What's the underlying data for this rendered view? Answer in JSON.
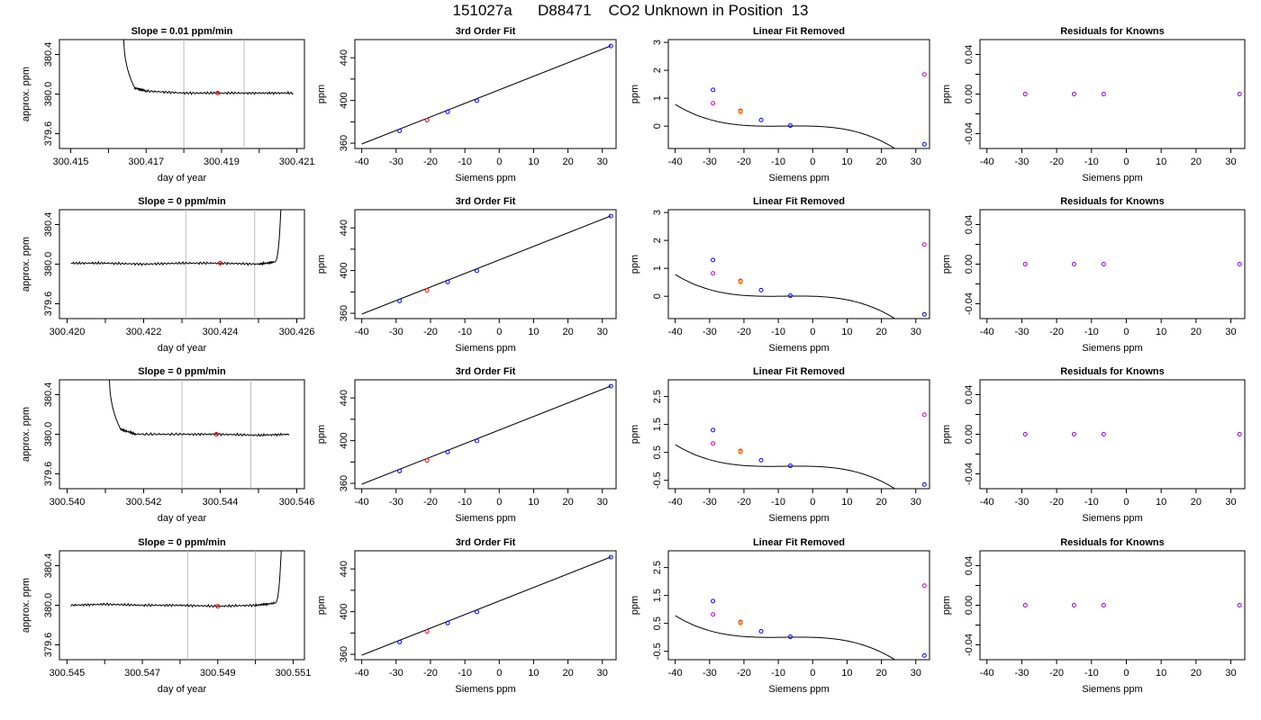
{
  "figure": {
    "title": "151027a      D88471    CO2 Unknown in Position  13"
  },
  "chart_data": [
    {
      "type": "line",
      "title": "Slope =  0.01  ppm/min",
      "xlabel": "day of year",
      "ylabel": "approx. ppm",
      "xlim": [
        300.4147,
        300.4212
      ],
      "ylim": [
        379.45,
        380.55
      ],
      "xticks": [
        "300.415",
        "300.417",
        "300.419",
        "300.421"
      ],
      "xminor": [
        300.416,
        300.418,
        300.42
      ],
      "yticks": [
        "379.6",
        "380.0",
        "380.4"
      ],
      "vlines": [
        300.418,
        300.4196
      ],
      "series": [
        {
          "x": [
            300.4164,
            300.4167,
            300.417,
            300.418,
            300.419,
            300.42,
            300.4209
          ],
          "y": [
            380.7,
            380.06,
            380.03,
            380.01,
            380.01,
            380.01,
            380.01
          ],
          "noise_from": 300.4167
        }
      ],
      "marker": {
        "x": 300.4189,
        "y": 380.01,
        "color": "#ff0000"
      }
    },
    {
      "type": "scatter",
      "title": "3rd Order Fit",
      "xlabel": "Siemens ppm",
      "ylabel": "ppm",
      "xlim": [
        -42,
        34
      ],
      "ylim": [
        355,
        457
      ],
      "xticks": [
        "-40",
        "-30",
        "-20",
        "-10",
        "0",
        "10",
        "20",
        "30"
      ],
      "yticks": [
        "360",
        "400",
        "440"
      ],
      "yminor": [
        380,
        420
      ],
      "curve": {
        "x": [
          -40,
          32.5
        ],
        "y": [
          359.2,
          451.2
        ]
      },
      "points": [
        {
          "x": -29,
          "y": 371.5,
          "color": "#0000ff"
        },
        {
          "x": -21,
          "y": 381.5,
          "color": "#ff0000"
        },
        {
          "x": -15,
          "y": 389.3,
          "color": "#0000ff"
        },
        {
          "x": -6.5,
          "y": 399.8,
          "color": "#0000ff"
        },
        {
          "x": 32.5,
          "y": 451,
          "color": "#0000ff"
        }
      ]
    },
    {
      "type": "scatter",
      "title": "Linear Fit Removed",
      "xlabel": "Siemens ppm",
      "ylabel": "ppm",
      "xlim": [
        -42,
        34
      ],
      "ylim": [
        -0.8,
        3.1
      ],
      "xticks": [
        "-40",
        "-30",
        "-20",
        "-10",
        "0",
        "10",
        "20",
        "30"
      ],
      "yticks": [
        "0",
        "1",
        "2",
        "3"
      ],
      "curve": {
        "coef": [
          0.0,
          -0.0039,
          -0.00063,
          -2.55e-05
        ]
      },
      "points": [
        {
          "x": -29,
          "y": 1.3,
          "color": "#0000ff"
        },
        {
          "x": -21,
          "y": 0.55,
          "color": "#ff0000"
        },
        {
          "x": -21,
          "y": 0.5,
          "color": "#ff9900"
        },
        {
          "x": -29,
          "y": 0.82,
          "color": "#cc00cc"
        },
        {
          "x": -15,
          "y": 0.22,
          "color": "#0000ff"
        },
        {
          "x": -6.5,
          "y": 0.02,
          "color": "#0000ff"
        },
        {
          "x": 32.5,
          "y": -0.65,
          "color": "#0000ff"
        },
        {
          "x": 32.5,
          "y": 1.85,
          "color": "#cc00cc"
        }
      ]
    },
    {
      "type": "scatter",
      "title": "Residuals for Knowns",
      "xlabel": "Siemens ppm",
      "ylabel": "ppm",
      "xlim": [
        -42,
        34
      ],
      "ylim": [
        -0.055,
        0.055
      ],
      "xticks": [
        "-40",
        "-30",
        "-20",
        "-10",
        "0",
        "10",
        "20",
        "30"
      ],
      "yticks": [
        "-0.04",
        "0.00",
        "0.04"
      ],
      "yminor": [
        -0.02,
        0.02
      ],
      "points": [
        {
          "x": -29,
          "y": 0,
          "color": "#9900cc"
        },
        {
          "x": -15,
          "y": 0,
          "color": "#9900cc"
        },
        {
          "x": -6.5,
          "y": 0,
          "color": "#9900cc"
        },
        {
          "x": 32.5,
          "y": 0,
          "color": "#9900cc"
        }
      ]
    },
    {
      "type": "line",
      "title": "Slope =  0  ppm/min",
      "xlabel": "day of year",
      "ylabel": "approx. ppm",
      "xlim": [
        300.4198,
        300.4262
      ],
      "ylim": [
        379.45,
        380.55
      ],
      "xticks": [
        "300.420",
        "300.422",
        "300.424",
        "300.426"
      ],
      "xminor": [
        300.421,
        300.423,
        300.425
      ],
      "yticks": [
        "379.6",
        "380.0",
        "380.4"
      ],
      "vlines": [
        300.4231,
        300.4249
      ],
      "series": [
        {
          "x": [
            300.4201,
            300.421,
            300.422,
            300.423,
            300.424,
            300.425,
            300.4254,
            300.4256
          ],
          "y": [
            380.01,
            380.01,
            380.0,
            380.01,
            380.01,
            380.0,
            380.02,
            380.7
          ],
          "noise_until": 300.4254
        }
      ],
      "marker": {
        "x": 300.424,
        "y": 380.01,
        "color": "#ff0000"
      }
    },
    {
      "type": "scatter",
      "title": "3rd Order Fit",
      "xlabel": "Siemens ppm",
      "ylabel": "ppm",
      "xlim": [
        -42,
        34
      ],
      "ylim": [
        355,
        457
      ],
      "xticks": [
        "-40",
        "-30",
        "-20",
        "-10",
        "0",
        "10",
        "20",
        "30"
      ],
      "yticks": [
        "360",
        "400",
        "440"
      ],
      "yminor": [
        380,
        420
      ],
      "curve": {
        "x": [
          -40,
          32.5
        ],
        "y": [
          359.2,
          451.2
        ]
      },
      "points": [
        {
          "x": -29,
          "y": 371.5,
          "color": "#0000ff"
        },
        {
          "x": -21,
          "y": 381.5,
          "color": "#ff0000"
        },
        {
          "x": -15,
          "y": 389.3,
          "color": "#0000ff"
        },
        {
          "x": -6.5,
          "y": 399.8,
          "color": "#0000ff"
        },
        {
          "x": 32.5,
          "y": 451,
          "color": "#0000ff"
        }
      ]
    },
    {
      "type": "scatter",
      "title": "Linear Fit Removed",
      "xlabel": "Siemens ppm",
      "ylabel": "ppm",
      "xlim": [
        -42,
        34
      ],
      "ylim": [
        -0.8,
        3.1
      ],
      "xticks": [
        "-40",
        "-30",
        "-20",
        "-10",
        "0",
        "10",
        "20",
        "30"
      ],
      "yticks": [
        "0",
        "1",
        "2",
        "3"
      ],
      "curve": {
        "coef": [
          0.0,
          -0.0039,
          -0.00063,
          -2.55e-05
        ]
      },
      "points": [
        {
          "x": -29,
          "y": 1.3,
          "color": "#0000ff"
        },
        {
          "x": -21,
          "y": 0.55,
          "color": "#ff0000"
        },
        {
          "x": -21,
          "y": 0.5,
          "color": "#ff9900"
        },
        {
          "x": -29,
          "y": 0.82,
          "color": "#cc00cc"
        },
        {
          "x": -15,
          "y": 0.22,
          "color": "#0000ff"
        },
        {
          "x": -6.5,
          "y": 0.02,
          "color": "#0000ff"
        },
        {
          "x": 32.5,
          "y": -0.65,
          "color": "#0000ff"
        },
        {
          "x": 32.5,
          "y": 1.85,
          "color": "#cc00cc"
        }
      ]
    },
    {
      "type": "scatter",
      "title": "Residuals for Knowns",
      "xlabel": "Siemens ppm",
      "ylabel": "ppm",
      "xlim": [
        -42,
        34
      ],
      "ylim": [
        -0.055,
        0.055
      ],
      "xticks": [
        "-40",
        "-30",
        "-20",
        "-10",
        "0",
        "10",
        "20",
        "30"
      ],
      "yticks": [
        "-0.04",
        "0.00",
        "0.04"
      ],
      "yminor": [
        -0.02,
        0.02
      ],
      "points": [
        {
          "x": -29,
          "y": 0,
          "color": "#9900cc"
        },
        {
          "x": -15,
          "y": 0,
          "color": "#9900cc"
        },
        {
          "x": -6.5,
          "y": 0,
          "color": "#9900cc"
        },
        {
          "x": 32.5,
          "y": 0,
          "color": "#9900cc"
        }
      ]
    },
    {
      "type": "line",
      "title": "Slope =  0  ppm/min",
      "xlabel": "day of year",
      "ylabel": "approx. ppm",
      "xlim": [
        300.5398,
        300.5462
      ],
      "ylim": [
        379.45,
        380.55
      ],
      "xticks": [
        "300.540",
        "300.542",
        "300.544",
        "300.546"
      ],
      "xminor": [
        300.541,
        300.543,
        300.545
      ],
      "yticks": [
        "379.6",
        "380.0",
        "380.4"
      ],
      "vlines": [
        300.543,
        300.5448
      ],
      "series": [
        {
          "x": [
            300.5411,
            300.5414,
            300.5418,
            300.543,
            300.544,
            300.545,
            300.5458
          ],
          "y": [
            380.7,
            380.05,
            380.0,
            380.0,
            380.0,
            379.99,
            380.0
          ],
          "noise_from": 300.5414
        }
      ],
      "marker": {
        "x": 300.5439,
        "y": 380.0,
        "color": "#ff0000"
      }
    },
    {
      "type": "scatter",
      "title": "3rd Order Fit",
      "xlabel": "Siemens ppm",
      "ylabel": "ppm",
      "xlim": [
        -42,
        34
      ],
      "ylim": [
        355,
        457
      ],
      "xticks": [
        "-40",
        "-30",
        "-20",
        "-10",
        "0",
        "10",
        "20",
        "30"
      ],
      "yticks": [
        "360",
        "400",
        "440"
      ],
      "yminor": [
        380,
        420
      ],
      "curve": {
        "x": [
          -40,
          32.5
        ],
        "y": [
          359.2,
          451.2
        ]
      },
      "points": [
        {
          "x": -29,
          "y": 371.5,
          "color": "#0000ff"
        },
        {
          "x": -21,
          "y": 381.5,
          "color": "#ff0000"
        },
        {
          "x": -15,
          "y": 389.3,
          "color": "#0000ff"
        },
        {
          "x": -6.5,
          "y": 399.8,
          "color": "#0000ff"
        },
        {
          "x": 32.5,
          "y": 451,
          "color": "#0000ff"
        }
      ]
    },
    {
      "type": "scatter",
      "title": "Linear Fit Removed",
      "xlabel": "Siemens ppm",
      "ylabel": "ppm",
      "xlim": [
        -42,
        34
      ],
      "ylim": [
        -0.8,
        3.1
      ],
      "xticks": [
        "-40",
        "-30",
        "-20",
        "-10",
        "0",
        "10",
        "20",
        "30"
      ],
      "yticks": [
        "-0.5",
        "0.5",
        "1.5",
        "2.5"
      ],
      "curve": {
        "coef": [
          0.0,
          -0.0039,
          -0.00063,
          -2.55e-05
        ]
      },
      "points": [
        {
          "x": -29,
          "y": 1.3,
          "color": "#0000ff"
        },
        {
          "x": -21,
          "y": 0.55,
          "color": "#ff0000"
        },
        {
          "x": -21,
          "y": 0.5,
          "color": "#ff9900"
        },
        {
          "x": -29,
          "y": 0.82,
          "color": "#cc00cc"
        },
        {
          "x": -15,
          "y": 0.22,
          "color": "#0000ff"
        },
        {
          "x": -6.5,
          "y": 0.02,
          "color": "#0000ff"
        },
        {
          "x": 32.5,
          "y": -0.65,
          "color": "#0000ff"
        },
        {
          "x": 32.5,
          "y": 1.85,
          "color": "#cc00cc"
        }
      ]
    },
    {
      "type": "scatter",
      "title": "Residuals for Knowns",
      "xlabel": "Siemens ppm",
      "ylabel": "ppm",
      "xlim": [
        -42,
        34
      ],
      "ylim": [
        -0.055,
        0.055
      ],
      "xticks": [
        "-40",
        "-30",
        "-20",
        "-10",
        "0",
        "10",
        "20",
        "30"
      ],
      "yticks": [
        "-0.04",
        "0.00",
        "0.04"
      ],
      "yminor": [
        -0.02,
        0.02
      ],
      "points": [
        {
          "x": -29,
          "y": 0,
          "color": "#9900cc"
        },
        {
          "x": -15,
          "y": 0,
          "color": "#9900cc"
        },
        {
          "x": -6.5,
          "y": 0,
          "color": "#9900cc"
        },
        {
          "x": 32.5,
          "y": 0,
          "color": "#9900cc"
        }
      ]
    },
    {
      "type": "line",
      "title": "Slope =  0  ppm/min",
      "xlabel": "day of year",
      "ylabel": "approx. ppm",
      "xlim": [
        300.5448,
        300.5513
      ],
      "ylim": [
        379.45,
        380.55
      ],
      "xticks": [
        "300.545",
        "300.547",
        "300.549",
        "300.551"
      ],
      "xminor": [
        300.546,
        300.548,
        300.55
      ],
      "yticks": [
        "379.6",
        "380.0",
        "380.4"
      ],
      "vlines": [
        300.5482,
        300.55
      ],
      "series": [
        {
          "x": [
            300.5451,
            300.546,
            300.547,
            300.548,
            300.549,
            300.55,
            300.5505,
            300.5507
          ],
          "y": [
            380.0,
            380.01,
            380.0,
            380.0,
            379.99,
            380.0,
            380.02,
            380.7
          ],
          "noise_until": 300.5505
        }
      ],
      "marker": {
        "x": 300.549,
        "y": 379.99,
        "color": "#ff0000"
      }
    },
    {
      "type": "scatter",
      "title": "3rd Order Fit",
      "xlabel": "Siemens ppm",
      "ylabel": "ppm",
      "xlim": [
        -42,
        34
      ],
      "ylim": [
        355,
        457
      ],
      "xticks": [
        "-40",
        "-30",
        "-20",
        "-10",
        "0",
        "10",
        "20",
        "30"
      ],
      "yticks": [
        "360",
        "400",
        "440"
      ],
      "yminor": [
        380,
        420
      ],
      "curve": {
        "x": [
          -40,
          32.5
        ],
        "y": [
          359.2,
          451.2
        ]
      },
      "points": [
        {
          "x": -29,
          "y": 371.5,
          "color": "#0000ff"
        },
        {
          "x": -21,
          "y": 381.5,
          "color": "#ff0000"
        },
        {
          "x": -15,
          "y": 389.3,
          "color": "#0000ff"
        },
        {
          "x": -6.5,
          "y": 399.8,
          "color": "#0000ff"
        },
        {
          "x": 32.5,
          "y": 451,
          "color": "#0000ff"
        }
      ]
    },
    {
      "type": "scatter",
      "title": "Linear Fit Removed",
      "xlabel": "Siemens ppm",
      "ylabel": "ppm",
      "xlim": [
        -42,
        34
      ],
      "ylim": [
        -0.8,
        3.1
      ],
      "xticks": [
        "-40",
        "-30",
        "-20",
        "-10",
        "0",
        "10",
        "20",
        "30"
      ],
      "yticks": [
        "-0.5",
        "0.5",
        "1.5",
        "2.5"
      ],
      "curve": {
        "coef": [
          0.0,
          -0.0039,
          -0.00063,
          -2.55e-05
        ]
      },
      "points": [
        {
          "x": -29,
          "y": 1.3,
          "color": "#0000ff"
        },
        {
          "x": -21,
          "y": 0.55,
          "color": "#ff0000"
        },
        {
          "x": -21,
          "y": 0.5,
          "color": "#ff9900"
        },
        {
          "x": -29,
          "y": 0.82,
          "color": "#cc00cc"
        },
        {
          "x": -15,
          "y": 0.22,
          "color": "#0000ff"
        },
        {
          "x": -6.5,
          "y": 0.02,
          "color": "#0000ff"
        },
        {
          "x": 32.5,
          "y": -0.65,
          "color": "#0000ff"
        },
        {
          "x": 32.5,
          "y": 1.85,
          "color": "#cc00cc"
        }
      ]
    },
    {
      "type": "scatter",
      "title": "Residuals for Knowns",
      "xlabel": "Siemens ppm",
      "ylabel": "ppm",
      "xlim": [
        -42,
        34
      ],
      "ylim": [
        -0.055,
        0.055
      ],
      "xticks": [
        "-40",
        "-30",
        "-20",
        "-10",
        "0",
        "10",
        "20",
        "30"
      ],
      "yticks": [
        "-0.04",
        "0.00",
        "0.04"
      ],
      "yminor": [
        -0.02,
        0.02
      ],
      "points": [
        {
          "x": -29,
          "y": 0,
          "color": "#9900cc"
        },
        {
          "x": -15,
          "y": 0,
          "color": "#9900cc"
        },
        {
          "x": -6.5,
          "y": 0,
          "color": "#9900cc"
        },
        {
          "x": 32.5,
          "y": 0,
          "color": "#9900cc"
        }
      ]
    }
  ]
}
